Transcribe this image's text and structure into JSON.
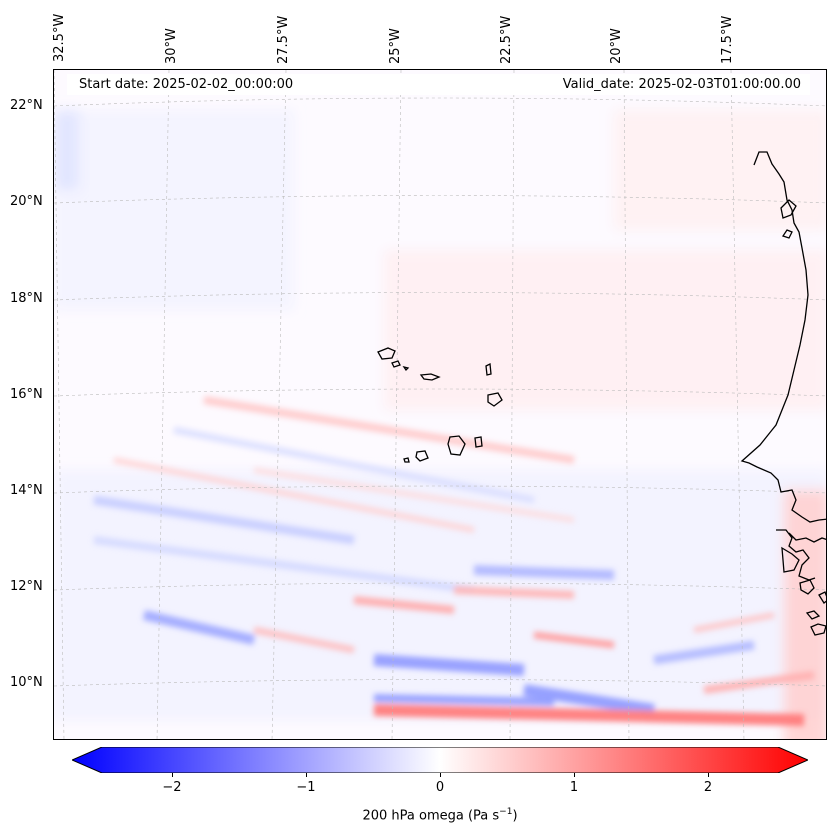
{
  "figure": {
    "start_date": "Start date: 2025-02-02_00:00:00",
    "valid_date": "Valid_date: 2025-02-03T01:00:00.00"
  },
  "map": {
    "lon_labels": [
      "32.5°W",
      "30°W",
      "27.5°W",
      "25°W",
      "22.5°W",
      "20°W",
      "17.5°W"
    ],
    "lat_labels": [
      "22°N",
      "20°N",
      "18°N",
      "16°N",
      "14°N",
      "12°N",
      "10°N"
    ],
    "field": "200 hPa omega",
    "colormap": "bwr",
    "colors": {
      "negative": "#0000ff",
      "neutral": "#ffffff",
      "positive": "#ff0000",
      "coast": "#000000"
    }
  },
  "colorbar": {
    "ticks": [
      "−2",
      "−1",
      "0",
      "1",
      "2"
    ],
    "tick_values": [
      -2,
      -1,
      0,
      1,
      2
    ],
    "range": [
      -2.6,
      2.6
    ],
    "extend": "both",
    "label_main": "200 hPa omega (Pa s",
    "label_sup": "−1",
    "label_end": ")"
  }
}
